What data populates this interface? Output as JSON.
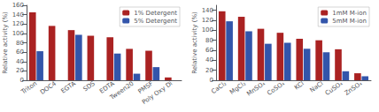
{
  "chart_data": [
    {
      "type": "bar",
      "categories": [
        "Triton",
        "DOC4",
        "EGTA",
        "SDS",
        "EDTA",
        "Tween20",
        "PMSF",
        "Poly Oxy Di"
      ],
      "series": [
        {
          "name": "1% Detergent",
          "color": "#aa2222",
          "values": [
            145,
            116,
            107,
            95,
            92,
            67,
            63,
            6
          ]
        },
        {
          "name": "5% Detergent",
          "color": "#3355aa",
          "values": [
            62,
            null,
            97,
            null,
            57,
            14,
            28,
            null
          ]
        }
      ],
      "ylabel": "Relative activity (%)",
      "ylim": [
        0,
        160
      ],
      "yticks": [
        0,
        20,
        40,
        60,
        80,
        100,
        120,
        140,
        160
      ],
      "legend": "upper right",
      "grid": false
    },
    {
      "type": "bar",
      "categories": [
        "CaCl₂",
        "MgCl₂",
        "MnSO₄",
        "CoSO₄",
        "KCl",
        "NaCl",
        "CuSO₄",
        "ZnSO₄"
      ],
      "series": [
        {
          "name": "1mM M-ion",
          "color": "#aa2222",
          "values": [
            138,
            127,
            103,
            95,
            83,
            80,
            62,
            14
          ]
        },
        {
          "name": "5mM M-ion",
          "color": "#3355aa",
          "values": [
            118,
            98,
            73,
            75,
            63,
            56,
            18,
            8
          ]
        }
      ],
      "ylabel": "Relative activity (%)",
      "ylim": [
        0,
        150
      ],
      "yticks": [
        0,
        20,
        40,
        60,
        80,
        100,
        120,
        140
      ],
      "legend": "upper right",
      "grid": false
    }
  ]
}
